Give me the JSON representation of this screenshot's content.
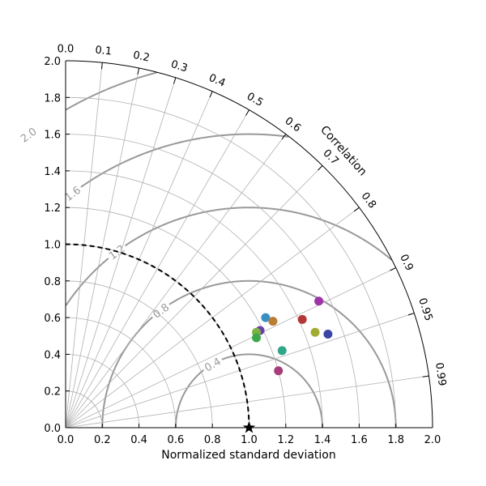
{
  "chart_data": {
    "type": "scatter",
    "subtype": "taylor-diagram",
    "xlabel": "Normalized standard deviation",
    "angle_label": "Correlation",
    "std_range": [
      0.0,
      2.0
    ],
    "std_ticks": [
      "0.0",
      "0.2",
      "0.4",
      "0.6",
      "0.8",
      "1.0",
      "1.2",
      "1.4",
      "1.6",
      "1.8",
      "2.0"
    ],
    "std_tick_values": [
      0.0,
      0.2,
      0.4,
      0.6,
      0.8,
      1.0,
      1.2,
      1.4,
      1.6,
      1.8,
      2.0
    ],
    "correlation_ticks": [
      "0.0",
      "0.1",
      "0.2",
      "0.3",
      "0.4",
      "0.5",
      "0.6",
      "0.7",
      "0.8",
      "0.9",
      "0.95",
      "0.99"
    ],
    "correlation_tick_values": [
      0.0,
      0.1,
      0.2,
      0.3,
      0.4,
      0.5,
      0.6,
      0.7,
      0.8,
      0.9,
      0.95,
      0.99
    ],
    "rms_contours": [
      "0.4",
      "0.8",
      "1.2",
      "1.6",
      "2.0"
    ],
    "rms_contour_values": [
      0.4,
      0.8,
      1.2,
      1.6,
      2.0
    ],
    "rms_contour_color": "#999999",
    "grid_color": "#b0b0b0",
    "reference": {
      "std": 1.0,
      "marker": "star",
      "color": "#000000"
    },
    "points": [
      {
        "x": 1.06,
        "y": 0.53,
        "color": "#6c3fa8"
      },
      {
        "x": 1.09,
        "y": 0.6,
        "color": "#3a8ec4"
      },
      {
        "x": 1.13,
        "y": 0.58,
        "color": "#b97e33"
      },
      {
        "x": 1.04,
        "y": 0.52,
        "color": "#7cb342"
      },
      {
        "x": 1.04,
        "y": 0.49,
        "color": "#3da84a"
      },
      {
        "x": 1.18,
        "y": 0.42,
        "color": "#2fa58a"
      },
      {
        "x": 1.16,
        "y": 0.31,
        "color": "#a63d7a"
      },
      {
        "x": 1.29,
        "y": 0.59,
        "color": "#b53636"
      },
      {
        "x": 1.38,
        "y": 0.69,
        "color": "#9c36a8"
      },
      {
        "x": 1.36,
        "y": 0.52,
        "color": "#a3aa33"
      },
      {
        "x": 1.43,
        "y": 0.51,
        "color": "#3a45a8"
      }
    ]
  }
}
